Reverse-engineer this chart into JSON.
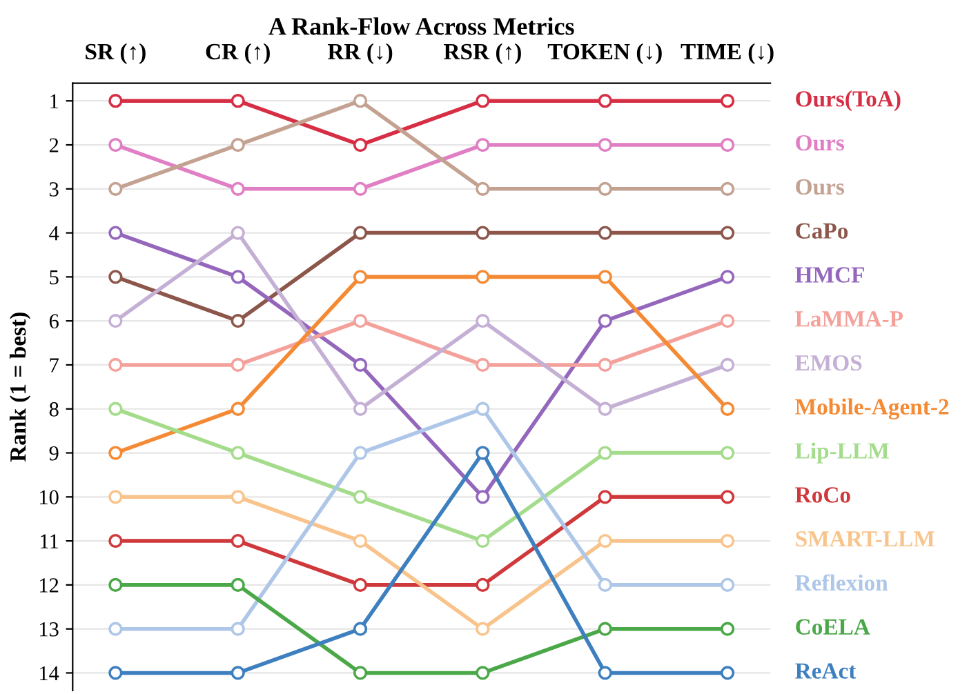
{
  "chart_data": {
    "type": "line",
    "title": "A Rank-Flow Across Metrics",
    "ylabel": "Rank (1 = best)",
    "categories": [
      "SR (↑)",
      "CR (↑)",
      "RR (↓)",
      "RSR (↑)",
      "TOKEN (↓)",
      "TIME (↓)"
    ],
    "ylim": [
      14.4,
      0.6
    ],
    "yticks": [
      1,
      2,
      3,
      4,
      5,
      6,
      7,
      8,
      9,
      10,
      11,
      12,
      13,
      14
    ],
    "grid": "y",
    "marker": "circle",
    "line_style": "solid",
    "legend": "right",
    "series": [
      {
        "name": "Ours(ToA)",
        "color": "#d62f45",
        "values": [
          1,
          1,
          2,
          1,
          1,
          1
        ]
      },
      {
        "name": "Ours",
        "color": "#e07fc4",
        "values": [
          2,
          3,
          3,
          2,
          2,
          2
        ]
      },
      {
        "name": "Ours",
        "color": "#c4a292",
        "values": [
          3,
          2,
          1,
          3,
          3,
          3
        ]
      },
      {
        "name": "CaPo",
        "color": "#8c564b",
        "values": [
          5,
          6,
          4,
          4,
          4,
          4
        ]
      },
      {
        "name": "HMCF",
        "color": "#9467bd",
        "values": [
          4,
          5,
          7,
          10,
          6,
          5
        ]
      },
      {
        "name": "LaMMA-P",
        "color": "#f4a19b",
        "values": [
          7,
          7,
          6,
          7,
          7,
          6
        ]
      },
      {
        "name": "EMOS",
        "color": "#c5b0d5",
        "values": [
          6,
          4,
          8,
          6,
          8,
          7
        ]
      },
      {
        "name": "Mobile-Agent-2",
        "color": "#f58a35",
        "values": [
          9,
          8,
          5,
          5,
          5,
          8
        ]
      },
      {
        "name": "Lip-LLM",
        "color": "#a4dc8c",
        "values": [
          8,
          9,
          10,
          11,
          9,
          9
        ]
      },
      {
        "name": "RoCo",
        "color": "#d0393c",
        "values": [
          11,
          11,
          12,
          12,
          10,
          10
        ]
      },
      {
        "name": "SMART-LLM",
        "color": "#f9c48c",
        "values": [
          10,
          10,
          11,
          13,
          11,
          11
        ]
      },
      {
        "name": "Reflexion",
        "color": "#aec7e8",
        "values": [
          13,
          13,
          9,
          8,
          12,
          12
        ]
      },
      {
        "name": "CoELA",
        "color": "#4ba848",
        "values": [
          12,
          12,
          14,
          14,
          13,
          13
        ]
      },
      {
        "name": "ReAct",
        "color": "#3d7fbf",
        "values": [
          14,
          14,
          13,
          9,
          14,
          14
        ]
      }
    ]
  }
}
